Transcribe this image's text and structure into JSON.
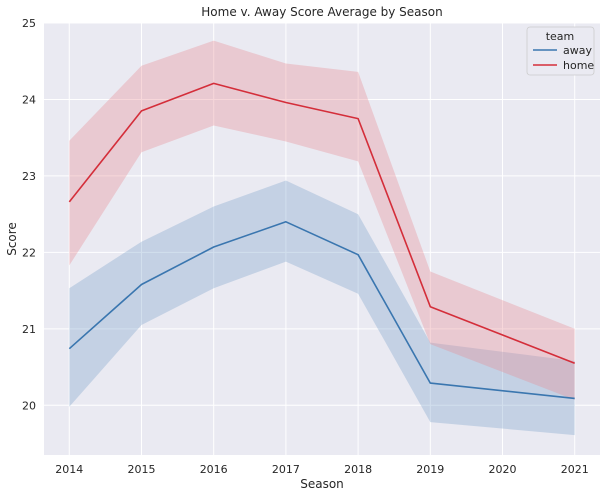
{
  "chart_data": {
    "type": "line",
    "title": "Home v. Away Score Average by Season",
    "xlabel": "Season",
    "ylabel": "Score",
    "x": [
      2014,
      2015,
      2016,
      2017,
      2018,
      2019,
      2020,
      2021
    ],
    "xticks": [
      "2014",
      "2015",
      "2016",
      "2017",
      "2018",
      "2019",
      "2020",
      "2021"
    ],
    "yticks": [
      "20",
      "21",
      "22",
      "23",
      "24",
      "25"
    ],
    "ylim": [
      19.35,
      25.0
    ],
    "grid": true,
    "legend": {
      "title": "team",
      "position": "top-right"
    },
    "series": [
      {
        "name": "away",
        "color": "#3a76af",
        "band_color": "#7ea3cb",
        "x": [
          2014,
          2015,
          2016,
          2017,
          2018,
          2019,
          2021
        ],
        "values": [
          20.74,
          21.58,
          22.07,
          22.4,
          21.97,
          20.29,
          20.09
        ],
        "ci_low": [
          19.98,
          21.05,
          21.53,
          21.88,
          21.46,
          19.78,
          19.61
        ],
        "ci_high": [
          21.53,
          22.14,
          22.6,
          22.94,
          22.5,
          20.82,
          20.58
        ]
      },
      {
        "name": "home",
        "color": "#d42e3a",
        "band_color": "#e88d96",
        "x": [
          2014,
          2015,
          2016,
          2017,
          2018,
          2019,
          2021
        ],
        "values": [
          22.66,
          23.85,
          24.21,
          23.96,
          23.75,
          21.29,
          20.55
        ],
        "ci_low": [
          21.83,
          23.31,
          23.66,
          23.45,
          23.19,
          20.8,
          20.07
        ],
        "ci_high": [
          23.46,
          24.44,
          24.77,
          24.47,
          24.36,
          21.75,
          21.0
        ]
      }
    ]
  }
}
